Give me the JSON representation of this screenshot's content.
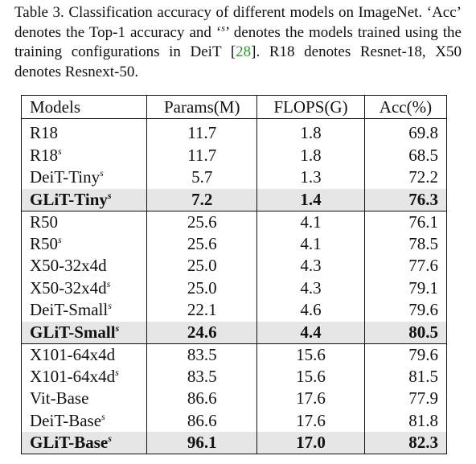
{
  "caption": {
    "part1": "Table 3. Classification accuracy of different models on ImageNet. ‘Acc’ denotes the Top-1 accuracy and ‘",
    "sup_mark": "s",
    "part2": "’ denotes the models trained using the training configurations in DeiT [",
    "cite": "28",
    "part3": "]. R18 denotes Resnet-18, X50 denotes Resnext-50."
  },
  "table": {
    "headers": [
      "Models",
      "Params(M)",
      "FLOPS(G)",
      "Acc(%)"
    ],
    "groups": [
      {
        "rows": [
          {
            "model": "R18",
            "sup": "",
            "params": "11.7",
            "flops": "1.8",
            "acc": "69.8",
            "highlight": false
          },
          {
            "model": "R18",
            "sup": "s",
            "params": "11.7",
            "flops": "1.8",
            "acc": "68.5",
            "highlight": false
          },
          {
            "model": "DeiT-Tiny",
            "sup": "s",
            "params": "5.7",
            "flops": "1.3",
            "acc": "72.2",
            "highlight": false
          },
          {
            "model": "GLiT-Tiny",
            "sup": "s",
            "params": "7.2",
            "flops": "1.4",
            "acc": "76.3",
            "highlight": true
          }
        ]
      },
      {
        "rows": [
          {
            "model": "R50",
            "sup": "",
            "params": "25.6",
            "flops": "4.1",
            "acc": "76.1",
            "highlight": false
          },
          {
            "model": "R50",
            "sup": "s",
            "params": "25.6",
            "flops": "4.1",
            "acc": "78.5",
            "highlight": false
          },
          {
            "model": "X50-32x4d",
            "sup": "",
            "params": "25.0",
            "flops": "4.3",
            "acc": "77.6",
            "highlight": false
          },
          {
            "model": "X50-32x4d",
            "sup": "s",
            "params": "25.0",
            "flops": "4.3",
            "acc": "79.1",
            "highlight": false
          },
          {
            "model": "DeiT-Small",
            "sup": "s",
            "params": "22.1",
            "flops": "4.6",
            "acc": "79.6",
            "highlight": false
          },
          {
            "model": "GLiT-Small",
            "sup": "s",
            "params": "24.6",
            "flops": "4.4",
            "acc": "80.5",
            "highlight": true
          }
        ]
      },
      {
        "rows": [
          {
            "model": "X101-64x4d",
            "sup": "",
            "params": "83.5",
            "flops": "15.6",
            "acc": "79.6",
            "highlight": false
          },
          {
            "model": "X101-64x4d",
            "sup": "s",
            "params": "83.5",
            "flops": "15.6",
            "acc": "81.5",
            "highlight": false
          },
          {
            "model": "Vit-Base",
            "sup": "",
            "params": "86.6",
            "flops": "17.6",
            "acc": "77.9",
            "highlight": false
          },
          {
            "model": "DeiT-Base",
            "sup": "s",
            "params": "86.6",
            "flops": "17.6",
            "acc": "81.8",
            "highlight": false
          },
          {
            "model": "GLiT-Base",
            "sup": "s",
            "params": "96.1",
            "flops": "17.0",
            "acc": "82.3",
            "highlight": true
          }
        ]
      }
    ]
  }
}
